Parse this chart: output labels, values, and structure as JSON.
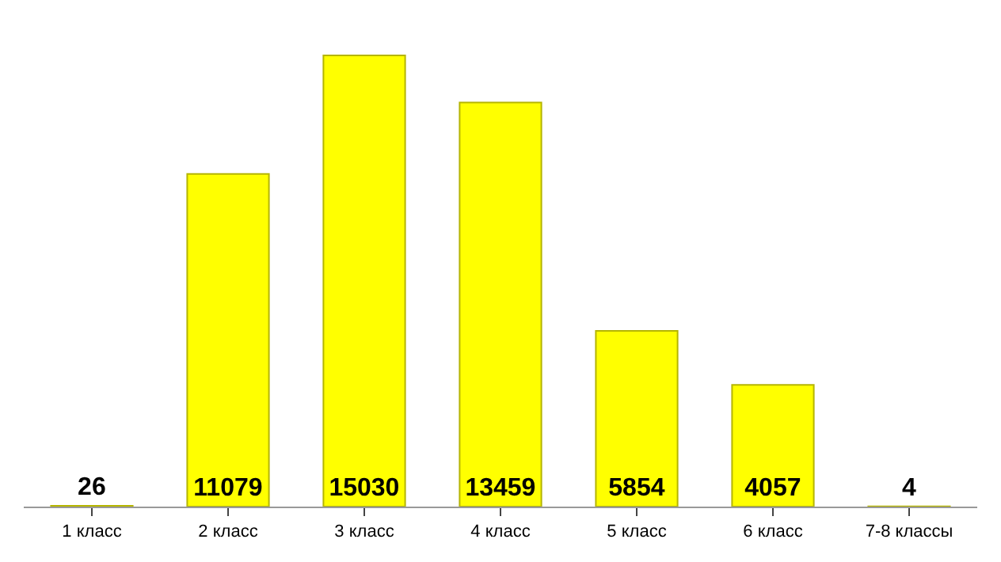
{
  "chart_data": {
    "type": "bar",
    "categories": [
      "1 класс",
      "2 класс",
      "3 класс",
      "4 класс",
      "5 класс",
      "6 класс",
      "7-8 классы"
    ],
    "values": [
      26,
      11079,
      15030,
      13459,
      5854,
      4057,
      4
    ],
    "color": "#ffff00",
    "data_labels": true,
    "legend": false
  }
}
